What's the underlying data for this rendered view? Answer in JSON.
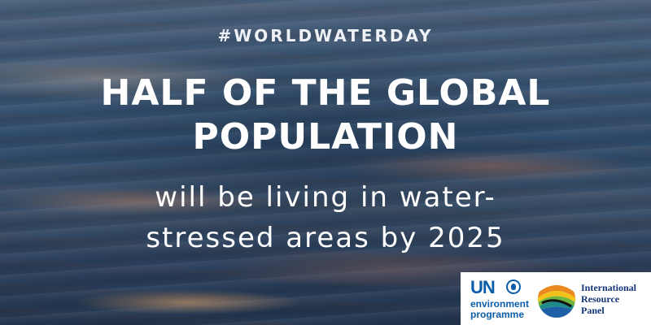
{
  "hashtag": "#WORLDWATERDAY",
  "headline": [
    "HALF OF THE GLOBAL",
    "POPULATION"
  ],
  "subtext": [
    "will be living in water-",
    "stressed areas by 2025"
  ],
  "logos": {
    "un": {
      "word": "UN",
      "line1": "environment",
      "line2": "programme",
      "color": "#0a5da8",
      "emblem_icon": "un-emblem-icon"
    },
    "irp": {
      "lines": [
        "International",
        "Resource",
        "Panel"
      ],
      "color": "#14357a",
      "logo_icon": "irp-rainbow-logo-icon"
    }
  }
}
